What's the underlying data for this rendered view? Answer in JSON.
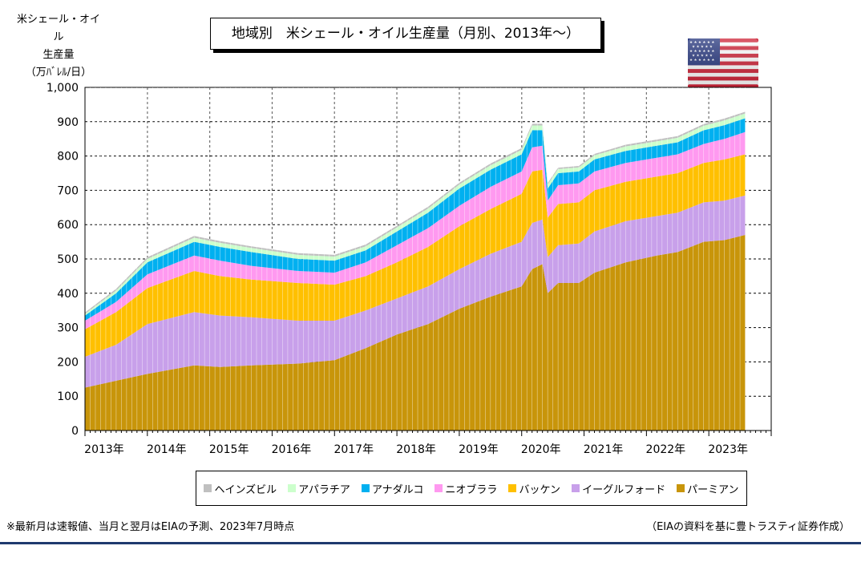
{
  "header": {
    "y_unit_lines": [
      "米シェール・オイル",
      "生産量",
      "（万ﾊﾞﾚﾙ/日）"
    ],
    "title": "地域別　米シェール・オイル生産量（月別、2013年～）",
    "flag_icon": "us-flag-icon"
  },
  "footer": {
    "note": "※最新月は速報値、当月と翌月はEIAの予測、2023年7月時点",
    "source": "（EIAの資料を基に豊トラスティ証券作成）"
  },
  "chart_data": {
    "type": "area",
    "stacked": true,
    "x": {
      "unit": "month",
      "start": "2013-01",
      "end": "2023-08",
      "tick_labels": [
        "2013年",
        "2014年",
        "2015年",
        "2016年",
        "2017年",
        "2018年",
        "2019年",
        "2020年",
        "2021年",
        "2022年",
        "2023年"
      ]
    },
    "ylim": [
      0,
      1000
    ],
    "yticks": [
      0,
      100,
      200,
      300,
      400,
      500,
      600,
      700,
      800,
      900,
      1000
    ],
    "ytick_labels": [
      "0",
      "100",
      "200",
      "300",
      "400",
      "500",
      "600",
      "700",
      "800",
      "900",
      "1,000"
    ],
    "grid": "dashed",
    "legend_position": "bottom",
    "series": [
      {
        "name": "パーミアン",
        "color": "#c8950a",
        "values": [
          125,
          145,
          165,
          190,
          185,
          190,
          195,
          205,
          240,
          280,
          310,
          355,
          390,
          420,
          470,
          485,
          400,
          430,
          430,
          460,
          490,
          510,
          520,
          550,
          555,
          570
        ]
      },
      {
        "name": "イーグルフォード",
        "color": "#c8a0ea",
        "values": [
          90,
          105,
          145,
          155,
          150,
          140,
          125,
          115,
          110,
          105,
          110,
          115,
          125,
          130,
          135,
          130,
          105,
          110,
          115,
          120,
          120,
          115,
          115,
          115,
          115,
          115
        ]
      },
      {
        "name": "バッケン",
        "color": "#ffc000",
        "values": [
          80,
          95,
          105,
          120,
          115,
          110,
          110,
          105,
          100,
          105,
          115,
          125,
          130,
          140,
          150,
          145,
          115,
          120,
          120,
          120,
          115,
          115,
          115,
          115,
          120,
          120
        ]
      },
      {
        "name": "ニオブララ",
        "color": "#ff99f0",
        "values": [
          25,
          30,
          40,
          45,
          45,
          40,
          35,
          35,
          40,
          50,
          55,
          60,
          65,
          65,
          70,
          70,
          50,
          55,
          55,
          55,
          55,
          55,
          55,
          55,
          60,
          65
        ]
      },
      {
        "name": "アナダルコ",
        "color": "#00b0f0",
        "values": [
          15,
          25,
          35,
          40,
          40,
          40,
          35,
          35,
          35,
          40,
          45,
          50,
          50,
          50,
          50,
          45,
          35,
          35,
          35,
          35,
          35,
          35,
          35,
          40,
          40,
          40
        ]
      },
      {
        "name": "アパラチア",
        "color": "#ccffcc",
        "values": [
          5,
          8,
          10,
          12,
          12,
          12,
          12,
          12,
          12,
          12,
          12,
          12,
          13,
          13,
          14,
          14,
          12,
          12,
          12,
          12,
          13,
          13,
          13,
          13,
          14,
          14
        ]
      },
      {
        "name": "ヘインズビル",
        "color": "#c0c0c0",
        "values": [
          4,
          5,
          5,
          5,
          5,
          5,
          5,
          5,
          5,
          5,
          5,
          5,
          5,
          5,
          5,
          5,
          4,
          4,
          4,
          4,
          5,
          5,
          5,
          5,
          5,
          5
        ]
      }
    ],
    "x_points": [
      "2013-01",
      "2013-07",
      "2014-01",
      "2014-10",
      "2015-03",
      "2015-09",
      "2016-06",
      "2017-01",
      "2017-07",
      "2018-01",
      "2018-07",
      "2019-01",
      "2019-07",
      "2020-01",
      "2020-03",
      "2020-05",
      "2020-06",
      "2020-08",
      "2020-12",
      "2021-03",
      "2021-09",
      "2022-03",
      "2022-07",
      "2022-12",
      "2023-04",
      "2023-08"
    ]
  }
}
